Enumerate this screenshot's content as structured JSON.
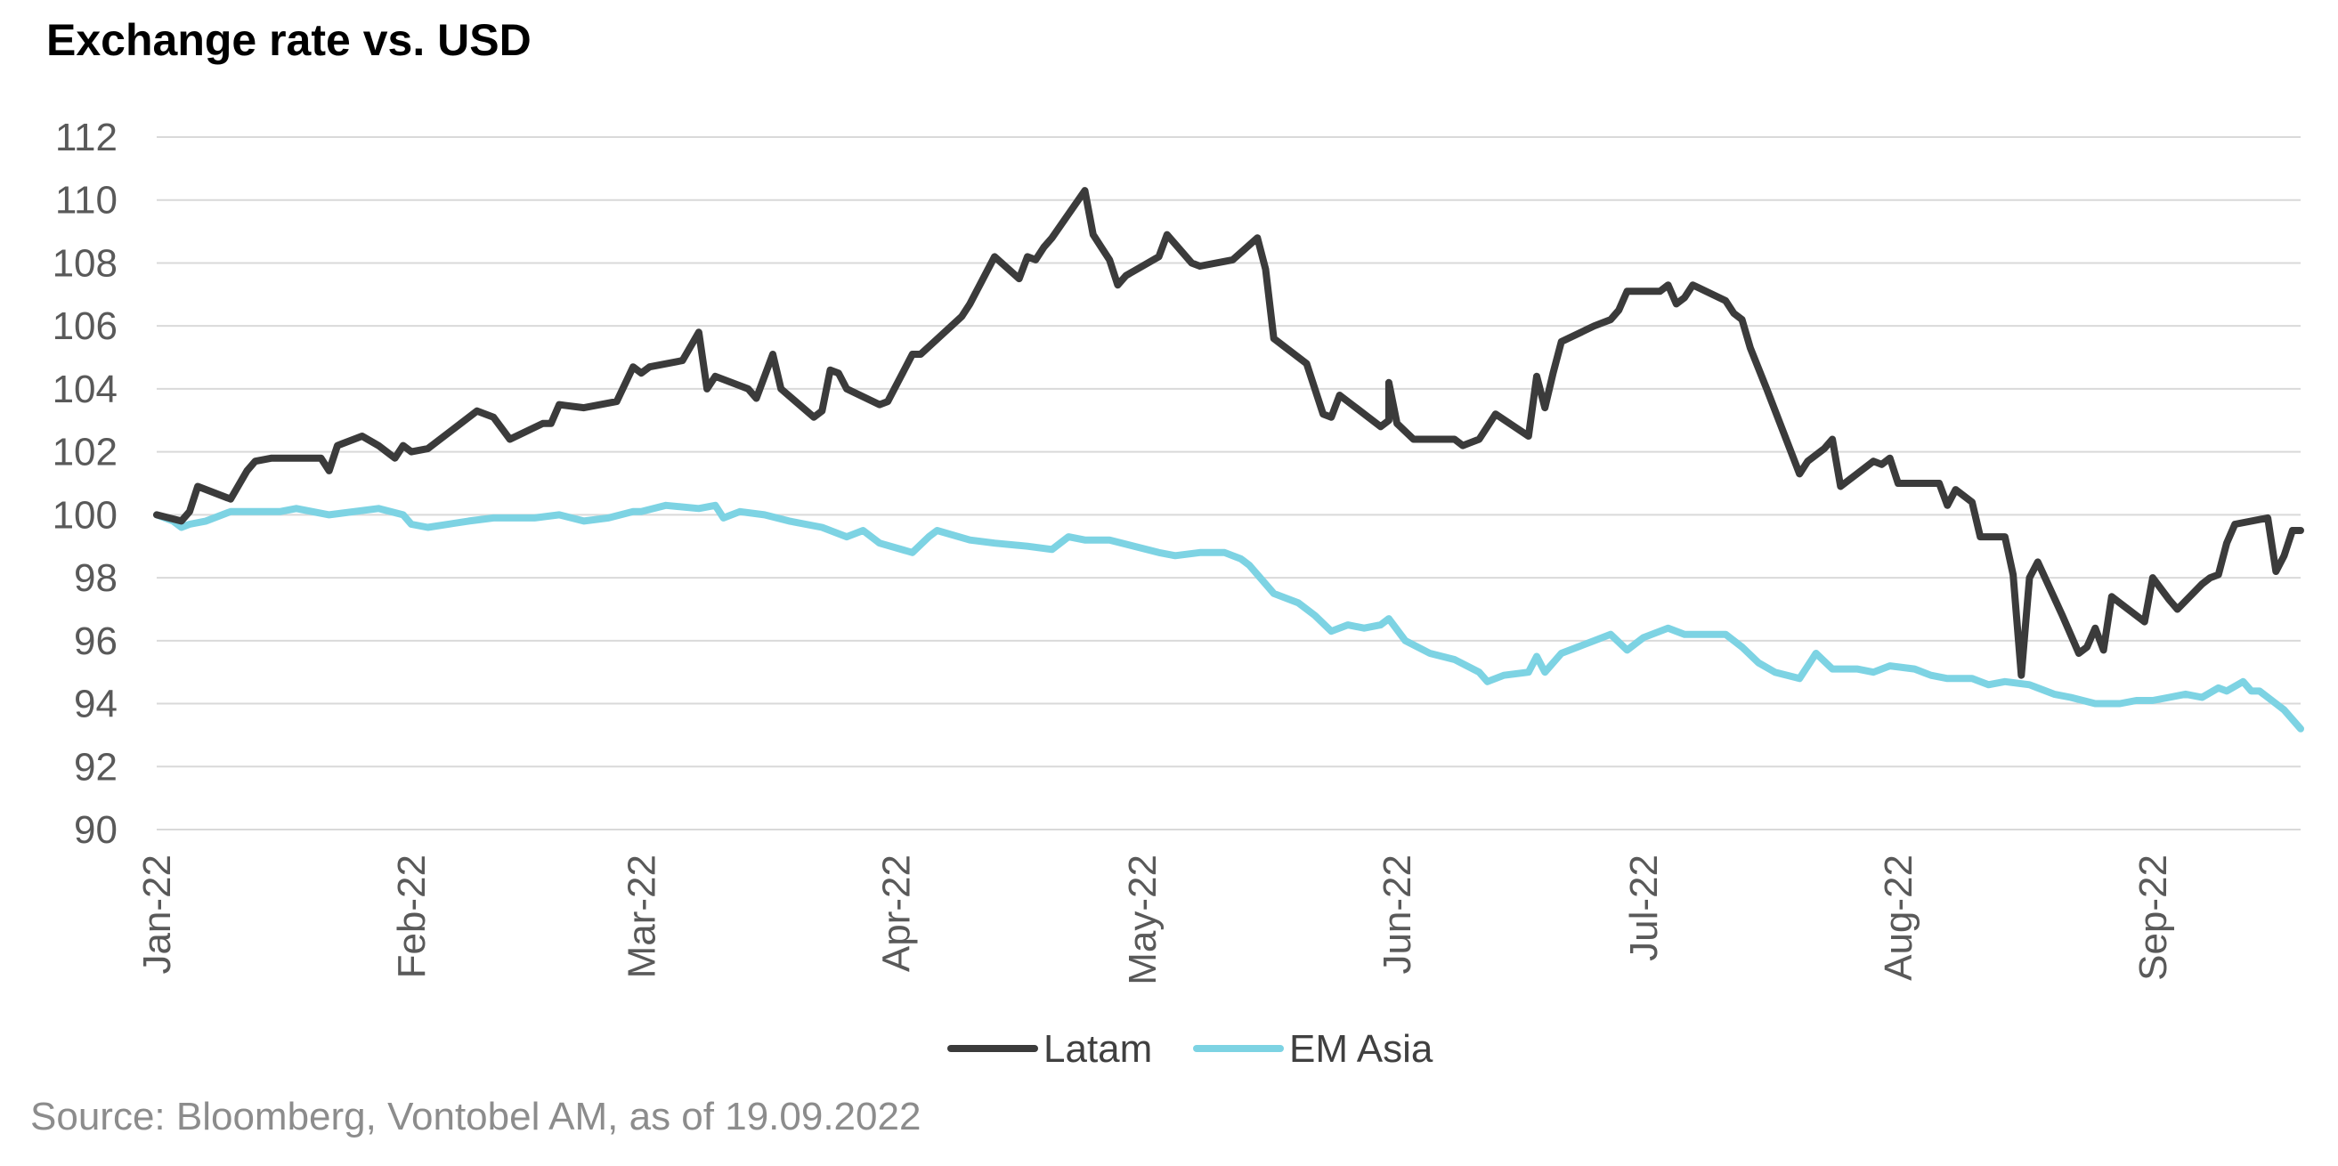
{
  "title": "Exchange rate vs. USD",
  "source": "Source: Bloomberg, Vontobel AM, as of 19.09.2022",
  "chart_data": {
    "type": "line",
    "title": "Exchange rate vs. USD",
    "xlabel": "",
    "ylabel": "",
    "ylim": [
      90,
      112
    ],
    "yticks": [
      90,
      92,
      94,
      96,
      98,
      100,
      102,
      104,
      106,
      108,
      110,
      112
    ],
    "xlim": [
      "2022-01-01",
      "2022-09-19"
    ],
    "xticks": [
      {
        "label": "Jan-22",
        "date": "2022-01-01"
      },
      {
        "label": "Feb-22",
        "date": "2022-02-01"
      },
      {
        "label": "Mar-22",
        "date": "2022-03-01"
      },
      {
        "label": "Apr-22",
        "date": "2022-04-01"
      },
      {
        "label": "May-22",
        "date": "2022-05-01"
      },
      {
        "label": "Jun-22",
        "date": "2022-06-01"
      },
      {
        "label": "Jul-22",
        "date": "2022-07-01"
      },
      {
        "label": "Aug-22",
        "date": "2022-08-01"
      },
      {
        "label": "Sep-22",
        "date": "2022-09-01"
      }
    ],
    "grid": true,
    "legend": "bottom-center",
    "colors": {
      "Latam": "#3b3b3b",
      "EM Asia": "#7dd3e3",
      "grid": "#d9d9d9"
    },
    "series": [
      {
        "name": "Latam",
        "points": [
          [
            "2022-01-01",
            100.0
          ],
          [
            "2022-01-04",
            99.8
          ],
          [
            "2022-01-05",
            100.1
          ],
          [
            "2022-01-06",
            100.9
          ],
          [
            "2022-01-08",
            100.7
          ],
          [
            "2022-01-10",
            100.5
          ],
          [
            "2022-01-12",
            101.4
          ],
          [
            "2022-01-13",
            101.7
          ],
          [
            "2022-01-15",
            101.8
          ],
          [
            "2022-01-19",
            101.8
          ],
          [
            "2022-01-21",
            101.8
          ],
          [
            "2022-01-22",
            101.4
          ],
          [
            "2022-01-23",
            102.2
          ],
          [
            "2022-01-26",
            102.5
          ],
          [
            "2022-01-28",
            102.2
          ],
          [
            "2022-01-30",
            101.8
          ],
          [
            "2022-01-31",
            102.2
          ],
          [
            "2022-02-01",
            102.0
          ],
          [
            "2022-02-03",
            102.1
          ],
          [
            "2022-02-07",
            102.9
          ],
          [
            "2022-02-09",
            103.3
          ],
          [
            "2022-02-11",
            103.1
          ],
          [
            "2022-02-13",
            102.4
          ],
          [
            "2022-02-17",
            102.9
          ],
          [
            "2022-02-18",
            102.9
          ],
          [
            "2022-02-19",
            103.5
          ],
          [
            "2022-02-22",
            103.4
          ],
          [
            "2022-02-26",
            103.6
          ],
          [
            "2022-02-28",
            104.7
          ],
          [
            "2022-03-01",
            104.5
          ],
          [
            "2022-03-02",
            104.7
          ],
          [
            "2022-03-06",
            104.9
          ],
          [
            "2022-03-08",
            105.8
          ],
          [
            "2022-03-09",
            104.0
          ],
          [
            "2022-03-10",
            104.4
          ],
          [
            "2022-03-14",
            104.0
          ],
          [
            "2022-03-15",
            103.7
          ],
          [
            "2022-03-17",
            105.1
          ],
          [
            "2022-03-18",
            104.0
          ],
          [
            "2022-03-22",
            103.1
          ],
          [
            "2022-03-23",
            103.3
          ],
          [
            "2022-03-24",
            104.6
          ],
          [
            "2022-03-25",
            104.5
          ],
          [
            "2022-03-26",
            104.0
          ],
          [
            "2022-03-30",
            103.5
          ],
          [
            "2022-03-31",
            103.6
          ],
          [
            "2022-04-02",
            104.6
          ],
          [
            "2022-04-03",
            105.1
          ],
          [
            "2022-04-04",
            105.1
          ],
          [
            "2022-04-09",
            106.3
          ],
          [
            "2022-04-10",
            106.7
          ],
          [
            "2022-04-13",
            108.2
          ],
          [
            "2022-04-16",
            107.5
          ],
          [
            "2022-04-17",
            108.2
          ],
          [
            "2022-04-18",
            108.1
          ],
          [
            "2022-04-19",
            108.5
          ],
          [
            "2022-04-20",
            108.8
          ],
          [
            "2022-04-24",
            110.3
          ],
          [
            "2022-04-25",
            108.9
          ],
          [
            "2022-04-26",
            108.5
          ],
          [
            "2022-04-27",
            108.1
          ],
          [
            "2022-04-28",
            107.3
          ],
          [
            "2022-04-29",
            107.6
          ],
          [
            "2022-05-03",
            108.2
          ],
          [
            "2022-05-04",
            108.9
          ],
          [
            "2022-05-07",
            108.0
          ],
          [
            "2022-05-08",
            107.9
          ],
          [
            "2022-05-12",
            108.1
          ],
          [
            "2022-05-15",
            108.8
          ],
          [
            "2022-05-16",
            107.8
          ],
          [
            "2022-05-17",
            105.6
          ],
          [
            "2022-05-21",
            104.8
          ],
          [
            "2022-05-23",
            103.2
          ],
          [
            "2022-05-24",
            103.1
          ],
          [
            "2022-05-25",
            103.8
          ],
          [
            "2022-05-27",
            103.4
          ],
          [
            "2022-05-30",
            102.8
          ],
          [
            "2022-05-31",
            103.0
          ],
          [
            "2022-05-31",
            104.2
          ],
          [
            "2022-06-01",
            102.9
          ],
          [
            "2022-06-03",
            102.4
          ],
          [
            "2022-06-08",
            102.4
          ],
          [
            "2022-06-09",
            102.2
          ],
          [
            "2022-06-11",
            102.4
          ],
          [
            "2022-06-13",
            103.2
          ],
          [
            "2022-06-17",
            102.5
          ],
          [
            "2022-06-18",
            104.4
          ],
          [
            "2022-06-19",
            103.4
          ],
          [
            "2022-06-20",
            104.5
          ],
          [
            "2022-06-21",
            105.5
          ],
          [
            "2022-06-25",
            106.0
          ],
          [
            "2022-06-27",
            106.2
          ],
          [
            "2022-06-28",
            106.5
          ],
          [
            "2022-06-29",
            107.1
          ],
          [
            "2022-07-03",
            107.1
          ],
          [
            "2022-07-04",
            107.3
          ],
          [
            "2022-07-05",
            106.7
          ],
          [
            "2022-07-06",
            106.9
          ],
          [
            "2022-07-07",
            107.3
          ],
          [
            "2022-07-11",
            106.8
          ],
          [
            "2022-07-12",
            106.4
          ],
          [
            "2022-07-13",
            106.2
          ],
          [
            "2022-07-14",
            105.3
          ],
          [
            "2022-07-16",
            104.0
          ],
          [
            "2022-07-20",
            101.3
          ],
          [
            "2022-07-21",
            101.7
          ],
          [
            "2022-07-23",
            102.1
          ],
          [
            "2022-07-24",
            102.4
          ],
          [
            "2022-07-25",
            100.9
          ],
          [
            "2022-07-29",
            101.7
          ],
          [
            "2022-07-30",
            101.6
          ],
          [
            "2022-07-31",
            101.8
          ],
          [
            "2022-08-01",
            101.0
          ],
          [
            "2022-08-05",
            101.0
          ],
          [
            "2022-08-06",
            101.0
          ],
          [
            "2022-08-07",
            100.3
          ],
          [
            "2022-08-08",
            100.8
          ],
          [
            "2022-08-10",
            100.4
          ],
          [
            "2022-08-11",
            99.3
          ],
          [
            "2022-08-14",
            99.3
          ],
          [
            "2022-08-15",
            98.1
          ],
          [
            "2022-08-16",
            94.9
          ],
          [
            "2022-08-17",
            98.0
          ],
          [
            "2022-08-18",
            98.5
          ],
          [
            "2022-08-21",
            96.8
          ],
          [
            "2022-08-23",
            95.6
          ],
          [
            "2022-08-24",
            95.8
          ],
          [
            "2022-08-25",
            96.4
          ],
          [
            "2022-08-26",
            95.7
          ],
          [
            "2022-08-27",
            97.4
          ],
          [
            "2022-08-28",
            97.2
          ],
          [
            "2022-08-31",
            96.6
          ],
          [
            "2022-09-01",
            98.0
          ],
          [
            "2022-09-03",
            97.3
          ],
          [
            "2022-09-04",
            97.0
          ],
          [
            "2022-09-07",
            97.8
          ],
          [
            "2022-09-08",
            98.0
          ],
          [
            "2022-09-09",
            98.1
          ],
          [
            "2022-09-10",
            99.1
          ],
          [
            "2022-09-11",
            99.7
          ],
          [
            "2022-09-15",
            99.9
          ],
          [
            "2022-09-16",
            98.2
          ],
          [
            "2022-09-17",
            98.7
          ],
          [
            "2022-09-18",
            99.5
          ],
          [
            "2022-09-19",
            99.5
          ]
        ]
      },
      {
        "name": "EM Asia",
        "points": [
          [
            "2022-01-01",
            100.0
          ],
          [
            "2022-01-03",
            99.8
          ],
          [
            "2022-01-04",
            99.6
          ],
          [
            "2022-01-05",
            99.7
          ],
          [
            "2022-01-07",
            99.8
          ],
          [
            "2022-01-10",
            100.1
          ],
          [
            "2022-01-13",
            100.1
          ],
          [
            "2022-01-16",
            100.1
          ],
          [
            "2022-01-18",
            100.2
          ],
          [
            "2022-01-22",
            100.0
          ],
          [
            "2022-01-25",
            100.1
          ],
          [
            "2022-01-28",
            100.2
          ],
          [
            "2022-01-31",
            100.0
          ],
          [
            "2022-02-01",
            99.7
          ],
          [
            "2022-02-03",
            99.6
          ],
          [
            "2022-02-08",
            99.8
          ],
          [
            "2022-02-11",
            99.9
          ],
          [
            "2022-02-16",
            99.9
          ],
          [
            "2022-02-19",
            100.0
          ],
          [
            "2022-02-22",
            99.8
          ],
          [
            "2022-02-25",
            99.9
          ],
          [
            "2022-02-28",
            100.1
          ],
          [
            "2022-03-01",
            100.1
          ],
          [
            "2022-03-04",
            100.3
          ],
          [
            "2022-03-08",
            100.2
          ],
          [
            "2022-03-10",
            100.3
          ],
          [
            "2022-03-11",
            99.9
          ],
          [
            "2022-03-13",
            100.1
          ],
          [
            "2022-03-16",
            100.0
          ],
          [
            "2022-03-19",
            99.8
          ],
          [
            "2022-03-23",
            99.6
          ],
          [
            "2022-03-26",
            99.3
          ],
          [
            "2022-03-28",
            99.5
          ],
          [
            "2022-03-30",
            99.1
          ],
          [
            "2022-04-03",
            98.8
          ],
          [
            "2022-04-05",
            99.3
          ],
          [
            "2022-04-06",
            99.5
          ],
          [
            "2022-04-10",
            99.2
          ],
          [
            "2022-04-13",
            99.1
          ],
          [
            "2022-04-17",
            99.0
          ],
          [
            "2022-04-20",
            98.9
          ],
          [
            "2022-04-22",
            99.3
          ],
          [
            "2022-04-24",
            99.2
          ],
          [
            "2022-04-27",
            99.2
          ],
          [
            "2022-04-30",
            99.0
          ],
          [
            "2022-05-03",
            98.8
          ],
          [
            "2022-05-05",
            98.7
          ],
          [
            "2022-05-08",
            98.8
          ],
          [
            "2022-05-11",
            98.8
          ],
          [
            "2022-05-13",
            98.6
          ],
          [
            "2022-05-14",
            98.4
          ],
          [
            "2022-05-17",
            97.5
          ],
          [
            "2022-05-20",
            97.2
          ],
          [
            "2022-05-22",
            96.8
          ],
          [
            "2022-05-24",
            96.3
          ],
          [
            "2022-05-26",
            96.5
          ],
          [
            "2022-05-28",
            96.4
          ],
          [
            "2022-05-30",
            96.5
          ],
          [
            "2022-05-31",
            96.7
          ],
          [
            "2022-06-02",
            96.0
          ],
          [
            "2022-06-05",
            95.6
          ],
          [
            "2022-06-08",
            95.4
          ],
          [
            "2022-06-11",
            95.0
          ],
          [
            "2022-06-12",
            94.7
          ],
          [
            "2022-06-14",
            94.9
          ],
          [
            "2022-06-17",
            95.0
          ],
          [
            "2022-06-18",
            95.5
          ],
          [
            "2022-06-19",
            95.0
          ],
          [
            "2022-06-21",
            95.6
          ],
          [
            "2022-06-25",
            96.0
          ],
          [
            "2022-06-27",
            96.2
          ],
          [
            "2022-06-29",
            95.7
          ],
          [
            "2022-07-01",
            96.1
          ],
          [
            "2022-07-04",
            96.4
          ],
          [
            "2022-07-06",
            96.2
          ],
          [
            "2022-07-08",
            96.2
          ],
          [
            "2022-07-11",
            96.2
          ],
          [
            "2022-07-13",
            95.8
          ],
          [
            "2022-07-15",
            95.3
          ],
          [
            "2022-07-17",
            95.0
          ],
          [
            "2022-07-20",
            94.8
          ],
          [
            "2022-07-22",
            95.6
          ],
          [
            "2022-07-24",
            95.1
          ],
          [
            "2022-07-27",
            95.1
          ],
          [
            "2022-07-29",
            95.0
          ],
          [
            "2022-07-31",
            95.2
          ],
          [
            "2022-08-03",
            95.1
          ],
          [
            "2022-08-05",
            94.9
          ],
          [
            "2022-08-07",
            94.8
          ],
          [
            "2022-08-10",
            94.8
          ],
          [
            "2022-08-12",
            94.6
          ],
          [
            "2022-08-14",
            94.7
          ],
          [
            "2022-08-17",
            94.6
          ],
          [
            "2022-08-20",
            94.3
          ],
          [
            "2022-08-22",
            94.2
          ],
          [
            "2022-08-25",
            94.0
          ],
          [
            "2022-08-28",
            94.0
          ],
          [
            "2022-08-30",
            94.1
          ],
          [
            "2022-09-01",
            94.1
          ],
          [
            "2022-09-03",
            94.2
          ],
          [
            "2022-09-05",
            94.3
          ],
          [
            "2022-09-07",
            94.2
          ],
          [
            "2022-09-09",
            94.5
          ],
          [
            "2022-09-10",
            94.4
          ],
          [
            "2022-09-12",
            94.7
          ],
          [
            "2022-09-13",
            94.4
          ],
          [
            "2022-09-14",
            94.4
          ],
          [
            "2022-09-16",
            94.0
          ],
          [
            "2022-09-17",
            93.8
          ],
          [
            "2022-09-19",
            93.2
          ]
        ]
      }
    ]
  }
}
